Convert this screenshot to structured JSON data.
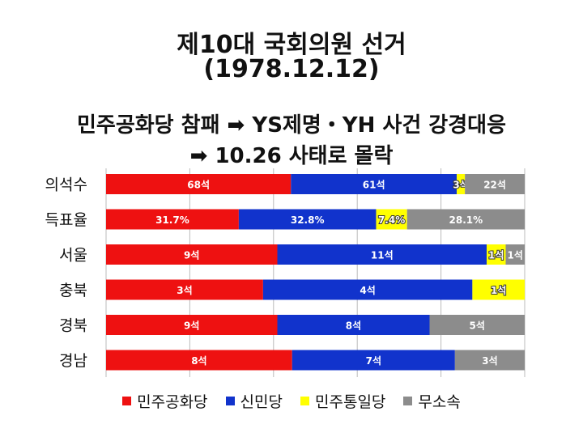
{
  "header": {
    "title_line1": "제10대 국회의원 선거",
    "title_line2": "(1978.12.12)",
    "subtitle_line1": "민주공화당 참패 ➡ YS제명・YH 사건 강경대응",
    "subtitle_line2": "➡ 10.26 사태로 몰락"
  },
  "chart_data": {
    "type": "bar",
    "orientation": "horizontal",
    "stacked": "100%",
    "categories": [
      "의석수",
      "득표율",
      "서울",
      "충북",
      "경북",
      "경남"
    ],
    "series": [
      {
        "name": "민주공화당",
        "color": "#ee1111",
        "values": [
          68,
          31.7,
          9,
          3,
          9,
          8
        ],
        "labels": [
          "68석",
          "31.7%",
          "9석",
          "3석",
          "9석",
          "8석"
        ]
      },
      {
        "name": "신민당",
        "color": "#1133cc",
        "values": [
          61,
          32.8,
          11,
          4,
          8,
          7
        ],
        "labels": [
          "61석",
          "32.8%",
          "11석",
          "4석",
          "8석",
          "7석"
        ]
      },
      {
        "name": "민주통일당",
        "color": "#ffff00",
        "values": [
          3,
          7.4,
          1,
          1,
          0,
          0
        ],
        "labels": [
          "3석",
          "7.4%",
          "1석",
          "1석",
          "",
          ""
        ]
      },
      {
        "name": "무소속",
        "color": "#8c8c8c",
        "values": [
          22,
          28.1,
          1,
          0,
          5,
          3
        ],
        "labels": [
          "22석",
          "28.1%",
          "1석",
          "",
          "5석",
          "3석"
        ]
      }
    ],
    "grid": true,
    "legend": "bottom"
  }
}
